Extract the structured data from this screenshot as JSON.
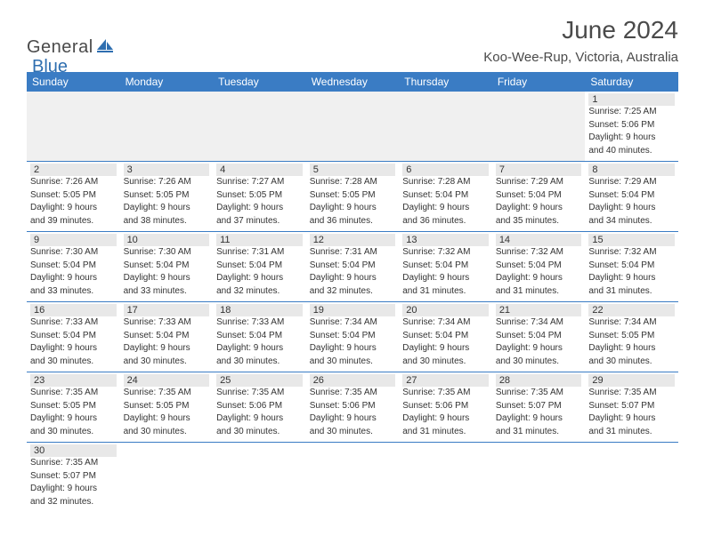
{
  "logo": {
    "word1": "General",
    "word2": "Blue"
  },
  "title": "June 2024",
  "location": "Koo-Wee-Rup, Victoria, Australia",
  "colors": {
    "header_bg": "#3a7cc4",
    "header_text": "#ffffff",
    "daynum_bg": "#e8e8e8",
    "border": "#3a7cc4",
    "text": "#333333",
    "logo_gray": "#4a4a4a",
    "logo_blue": "#2f6fb0"
  },
  "day_headers": [
    "Sunday",
    "Monday",
    "Tuesday",
    "Wednesday",
    "Thursday",
    "Friday",
    "Saturday"
  ],
  "weeks": [
    [
      null,
      null,
      null,
      null,
      null,
      null,
      {
        "n": "1",
        "sr": "Sunrise: 7:25 AM",
        "ss": "Sunset: 5:06 PM",
        "d1": "Daylight: 9 hours",
        "d2": "and 40 minutes."
      }
    ],
    [
      {
        "n": "2",
        "sr": "Sunrise: 7:26 AM",
        "ss": "Sunset: 5:05 PM",
        "d1": "Daylight: 9 hours",
        "d2": "and 39 minutes."
      },
      {
        "n": "3",
        "sr": "Sunrise: 7:26 AM",
        "ss": "Sunset: 5:05 PM",
        "d1": "Daylight: 9 hours",
        "d2": "and 38 minutes."
      },
      {
        "n": "4",
        "sr": "Sunrise: 7:27 AM",
        "ss": "Sunset: 5:05 PM",
        "d1": "Daylight: 9 hours",
        "d2": "and 37 minutes."
      },
      {
        "n": "5",
        "sr": "Sunrise: 7:28 AM",
        "ss": "Sunset: 5:05 PM",
        "d1": "Daylight: 9 hours",
        "d2": "and 36 minutes."
      },
      {
        "n": "6",
        "sr": "Sunrise: 7:28 AM",
        "ss": "Sunset: 5:04 PM",
        "d1": "Daylight: 9 hours",
        "d2": "and 36 minutes."
      },
      {
        "n": "7",
        "sr": "Sunrise: 7:29 AM",
        "ss": "Sunset: 5:04 PM",
        "d1": "Daylight: 9 hours",
        "d2": "and 35 minutes."
      },
      {
        "n": "8",
        "sr": "Sunrise: 7:29 AM",
        "ss": "Sunset: 5:04 PM",
        "d1": "Daylight: 9 hours",
        "d2": "and 34 minutes."
      }
    ],
    [
      {
        "n": "9",
        "sr": "Sunrise: 7:30 AM",
        "ss": "Sunset: 5:04 PM",
        "d1": "Daylight: 9 hours",
        "d2": "and 33 minutes."
      },
      {
        "n": "10",
        "sr": "Sunrise: 7:30 AM",
        "ss": "Sunset: 5:04 PM",
        "d1": "Daylight: 9 hours",
        "d2": "and 33 minutes."
      },
      {
        "n": "11",
        "sr": "Sunrise: 7:31 AM",
        "ss": "Sunset: 5:04 PM",
        "d1": "Daylight: 9 hours",
        "d2": "and 32 minutes."
      },
      {
        "n": "12",
        "sr": "Sunrise: 7:31 AM",
        "ss": "Sunset: 5:04 PM",
        "d1": "Daylight: 9 hours",
        "d2": "and 32 minutes."
      },
      {
        "n": "13",
        "sr": "Sunrise: 7:32 AM",
        "ss": "Sunset: 5:04 PM",
        "d1": "Daylight: 9 hours",
        "d2": "and 31 minutes."
      },
      {
        "n": "14",
        "sr": "Sunrise: 7:32 AM",
        "ss": "Sunset: 5:04 PM",
        "d1": "Daylight: 9 hours",
        "d2": "and 31 minutes."
      },
      {
        "n": "15",
        "sr": "Sunrise: 7:32 AM",
        "ss": "Sunset: 5:04 PM",
        "d1": "Daylight: 9 hours",
        "d2": "and 31 minutes."
      }
    ],
    [
      {
        "n": "16",
        "sr": "Sunrise: 7:33 AM",
        "ss": "Sunset: 5:04 PM",
        "d1": "Daylight: 9 hours",
        "d2": "and 30 minutes."
      },
      {
        "n": "17",
        "sr": "Sunrise: 7:33 AM",
        "ss": "Sunset: 5:04 PM",
        "d1": "Daylight: 9 hours",
        "d2": "and 30 minutes."
      },
      {
        "n": "18",
        "sr": "Sunrise: 7:33 AM",
        "ss": "Sunset: 5:04 PM",
        "d1": "Daylight: 9 hours",
        "d2": "and 30 minutes."
      },
      {
        "n": "19",
        "sr": "Sunrise: 7:34 AM",
        "ss": "Sunset: 5:04 PM",
        "d1": "Daylight: 9 hours",
        "d2": "and 30 minutes."
      },
      {
        "n": "20",
        "sr": "Sunrise: 7:34 AM",
        "ss": "Sunset: 5:04 PM",
        "d1": "Daylight: 9 hours",
        "d2": "and 30 minutes."
      },
      {
        "n": "21",
        "sr": "Sunrise: 7:34 AM",
        "ss": "Sunset: 5:04 PM",
        "d1": "Daylight: 9 hours",
        "d2": "and 30 minutes."
      },
      {
        "n": "22",
        "sr": "Sunrise: 7:34 AM",
        "ss": "Sunset: 5:05 PM",
        "d1": "Daylight: 9 hours",
        "d2": "and 30 minutes."
      }
    ],
    [
      {
        "n": "23",
        "sr": "Sunrise: 7:35 AM",
        "ss": "Sunset: 5:05 PM",
        "d1": "Daylight: 9 hours",
        "d2": "and 30 minutes."
      },
      {
        "n": "24",
        "sr": "Sunrise: 7:35 AM",
        "ss": "Sunset: 5:05 PM",
        "d1": "Daylight: 9 hours",
        "d2": "and 30 minutes."
      },
      {
        "n": "25",
        "sr": "Sunrise: 7:35 AM",
        "ss": "Sunset: 5:06 PM",
        "d1": "Daylight: 9 hours",
        "d2": "and 30 minutes."
      },
      {
        "n": "26",
        "sr": "Sunrise: 7:35 AM",
        "ss": "Sunset: 5:06 PM",
        "d1": "Daylight: 9 hours",
        "d2": "and 30 minutes."
      },
      {
        "n": "27",
        "sr": "Sunrise: 7:35 AM",
        "ss": "Sunset: 5:06 PM",
        "d1": "Daylight: 9 hours",
        "d2": "and 31 minutes."
      },
      {
        "n": "28",
        "sr": "Sunrise: 7:35 AM",
        "ss": "Sunset: 5:07 PM",
        "d1": "Daylight: 9 hours",
        "d2": "and 31 minutes."
      },
      {
        "n": "29",
        "sr": "Sunrise: 7:35 AM",
        "ss": "Sunset: 5:07 PM",
        "d1": "Daylight: 9 hours",
        "d2": "and 31 minutes."
      }
    ],
    [
      {
        "n": "30",
        "sr": "Sunrise: 7:35 AM",
        "ss": "Sunset: 5:07 PM",
        "d1": "Daylight: 9 hours",
        "d2": "and 32 minutes."
      },
      null,
      null,
      null,
      null,
      null,
      null
    ]
  ]
}
